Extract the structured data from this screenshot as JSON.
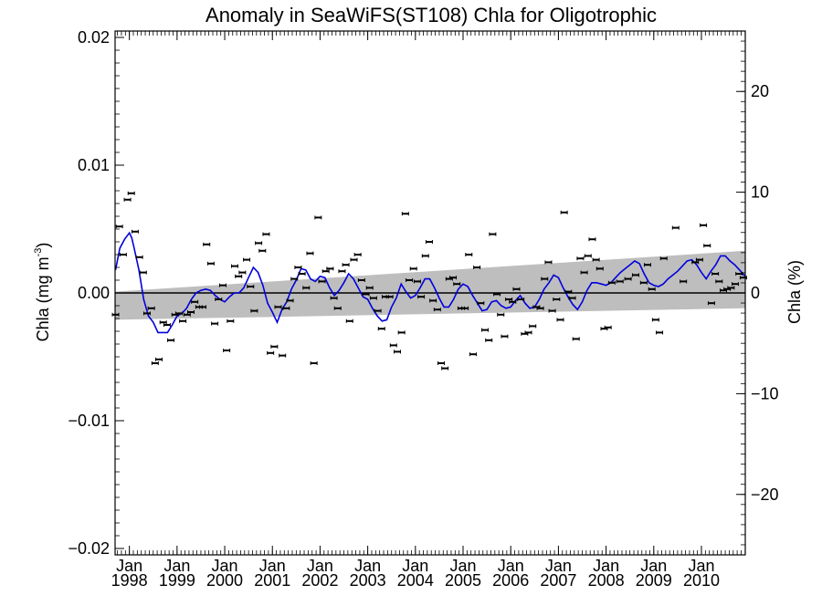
{
  "chart_data": {
    "type": "scatter",
    "title": "Anomaly in SeaWiFS(ST108) Chla for Oligotrophic",
    "ylabel_left": "Chla (mg m",
    "ylabel_left_superscript": "-3",
    "ylabel_left_close": ")",
    "ylabel_right": "Chla (%)",
    "xlim": [
      1997.7,
      2010.92
    ],
    "ylim_left": [
      -0.0205,
      0.0205
    ],
    "ylim_right": [
      -26,
      26
    ],
    "grid": false,
    "zero_line": true,
    "yticks_left": [
      {
        "value": -0.02,
        "label": "−0.02"
      },
      {
        "value": -0.01,
        "label": "−0.01"
      },
      {
        "value": 0.0,
        "label": "0.00"
      },
      {
        "value": 0.01,
        "label": "0.01"
      },
      {
        "value": 0.02,
        "label": "0.02"
      }
    ],
    "yticks_right": [
      {
        "value": -20,
        "label": "−20"
      },
      {
        "value": -10,
        "label": "−10"
      },
      {
        "value": 0,
        "label": "0"
      },
      {
        "value": 10,
        "label": "10"
      },
      {
        "value": 20,
        "label": "20"
      }
    ],
    "xticks": [
      {
        "value": 1998,
        "month": "Jan",
        "year": "1998"
      },
      {
        "value": 1999,
        "month": "Jan",
        "year": "1999"
      },
      {
        "value": 2000,
        "month": "Jan",
        "year": "2000"
      },
      {
        "value": 2001,
        "month": "Jan",
        "year": "2001"
      },
      {
        "value": 2002,
        "month": "Jan",
        "year": "2002"
      },
      {
        "value": 2003,
        "month": "Jan",
        "year": "2003"
      },
      {
        "value": 2004,
        "month": "Jan",
        "year": "2004"
      },
      {
        "value": 2005,
        "month": "Jan",
        "year": "2005"
      },
      {
        "value": 2006,
        "month": "Jan",
        "year": "2006"
      },
      {
        "value": 2007,
        "month": "Jan",
        "year": "2007"
      },
      {
        "value": 2008,
        "month": "Jan",
        "year": "2008"
      },
      {
        "value": 2009,
        "month": "Jan",
        "year": "2009"
      },
      {
        "value": 2010,
        "month": "Jan",
        "year": "2010"
      }
    ],
    "trend_band": {
      "x": [
        1997.7,
        2010.92
      ],
      "upper": [
        0.0001,
        0.0033
      ],
      "lower": [
        -0.0021,
        -0.0012
      ],
      "color": "#bebebe"
    },
    "running_mean": {
      "color": "#0000dd",
      "x": [
        1997.71,
        1997.8,
        1997.9,
        1998.0,
        1998.05,
        1998.1,
        1998.2,
        1998.3,
        1998.4,
        1998.5,
        1998.6,
        1998.7,
        1998.8,
        1998.9,
        1999.0,
        1999.1,
        1999.2,
        1999.3,
        1999.4,
        1999.5,
        1999.6,
        1999.7,
        1999.8,
        1999.9,
        2000.0,
        2000.1,
        2000.2,
        2000.3,
        2000.4,
        2000.5,
        2000.6,
        2000.7,
        2000.8,
        2000.9,
        2001.0,
        2001.1,
        2001.2,
        2001.3,
        2001.4,
        2001.5,
        2001.6,
        2001.7,
        2001.8,
        2001.9,
        2002.0,
        2002.1,
        2002.2,
        2002.3,
        2002.4,
        2002.5,
        2002.6,
        2002.7,
        2002.8,
        2002.9,
        2003.0,
        2003.1,
        2003.2,
        2003.3,
        2003.4,
        2003.5,
        2003.6,
        2003.7,
        2003.8,
        2003.9,
        2004.0,
        2004.1,
        2004.2,
        2004.3,
        2004.4,
        2004.5,
        2004.6,
        2004.7,
        2004.8,
        2004.9,
        2005.0,
        2005.1,
        2005.2,
        2005.3,
        2005.4,
        2005.5,
        2005.6,
        2005.7,
        2005.8,
        2005.9,
        2006.0,
        2006.1,
        2006.2,
        2006.3,
        2006.4,
        2006.5,
        2006.6,
        2006.7,
        2006.8,
        2006.9,
        2007.0,
        2007.1,
        2007.2,
        2007.3,
        2007.4,
        2007.5,
        2007.6,
        2007.7,
        2007.8,
        2007.9,
        2008.0,
        2008.1,
        2008.2,
        2008.3,
        2008.4,
        2008.5,
        2008.6,
        2008.7,
        2008.8,
        2008.9,
        2009.0,
        2009.1,
        2009.2,
        2009.3,
        2009.4,
        2009.5,
        2009.6,
        2009.7,
        2009.8,
        2009.9,
        2010.0,
        2010.1,
        2010.2,
        2010.3,
        2010.4,
        2010.5,
        2010.6,
        2010.7,
        2010.8,
        2010.92
      ],
      "y": [
        0.0018,
        0.0035,
        0.0042,
        0.0047,
        0.0043,
        0.0035,
        0.0018,
        -0.0005,
        -0.0018,
        -0.0023,
        -0.0031,
        -0.0031,
        -0.0031,
        -0.0025,
        -0.0018,
        -0.0016,
        -0.0012,
        -0.0005,
        0.0,
        0.0002,
        0.0003,
        0.0002,
        -0.0002,
        -0.0005,
        -0.0007,
        -0.0003,
        0.0,
        0.0,
        0.0004,
        0.0012,
        0.002,
        0.0016,
        0.0006,
        -0.0008,
        -0.0015,
        -0.0023,
        -0.0013,
        -0.0007,
        0.0003,
        0.001,
        0.0019,
        0.0018,
        0.0011,
        0.0009,
        0.0013,
        0.0012,
        0.0004,
        -0.0002,
        0.0002,
        0.0008,
        0.0015,
        0.0011,
        0.0004,
        -0.0003,
        -0.0005,
        -0.0012,
        -0.0018,
        -0.0022,
        -0.0021,
        -0.0011,
        -0.0004,
        0.0007,
        0.0001,
        -0.0004,
        -0.0002,
        0.0004,
        0.0011,
        0.0011,
        0.0004,
        -0.0004,
        -0.0011,
        -0.0011,
        -0.0005,
        0.0003,
        0.0007,
        0.0005,
        -0.0002,
        -0.0008,
        -0.0014,
        -0.0013,
        -0.0007,
        -0.0006,
        -0.001,
        -0.0012,
        -0.0011,
        -0.0006,
        -0.0002,
        -0.0008,
        -0.0012,
        -0.0011,
        -0.0005,
        0.0003,
        0.0008,
        0.0014,
        0.0012,
        0.0004,
        -0.0003,
        -0.0009,
        -0.0013,
        -0.0007,
        0.0002,
        0.0008,
        0.0008,
        0.0007,
        0.0006,
        0.0008,
        0.0012,
        0.0016,
        0.0019,
        0.0022,
        0.0025,
        0.0023,
        0.0015,
        0.0008,
        0.0006,
        0.0005,
        0.0007,
        0.0011,
        0.0014,
        0.0017,
        0.0021,
        0.0025,
        0.0026,
        0.0022,
        0.0016,
        0.0011,
        0.0017,
        0.0022,
        0.0029,
        0.0029,
        0.0025,
        0.0022,
        0.0018,
        0.0013
      ]
    },
    "monthly_points": {
      "x": [
        1997.71,
        1997.79,
        1997.87,
        1997.96,
        1998.04,
        1998.12,
        1998.21,
        1998.29,
        1998.37,
        1998.46,
        1998.54,
        1998.62,
        1998.71,
        1998.79,
        1998.87,
        1998.96,
        1999.04,
        1999.12,
        1999.21,
        1999.29,
        1999.37,
        1999.46,
        1999.54,
        1999.62,
        1999.71,
        1999.79,
        1999.87,
        1999.96,
        2000.04,
        2000.12,
        2000.21,
        2000.29,
        2000.37,
        2000.46,
        2000.54,
        2000.62,
        2000.71,
        2000.79,
        2000.87,
        2000.96,
        2001.04,
        2001.12,
        2001.21,
        2001.29,
        2001.37,
        2001.46,
        2001.54,
        2001.62,
        2001.71,
        2001.79,
        2001.87,
        2001.96,
        2002.04,
        2002.12,
        2002.21,
        2002.29,
        2002.37,
        2002.46,
        2002.54,
        2002.62,
        2002.71,
        2002.79,
        2002.87,
        2002.96,
        2003.04,
        2003.12,
        2003.21,
        2003.29,
        2003.37,
        2003.46,
        2003.54,
        2003.62,
        2003.71,
        2003.79,
        2003.87,
        2003.96,
        2004.04,
        2004.12,
        2004.21,
        2004.29,
        2004.37,
        2004.46,
        2004.54,
        2004.62,
        2004.71,
        2004.79,
        2004.87,
        2004.96,
        2005.04,
        2005.12,
        2005.21,
        2005.29,
        2005.37,
        2005.46,
        2005.54,
        2005.62,
        2005.71,
        2005.79,
        2005.87,
        2005.96,
        2006.04,
        2006.12,
        2006.21,
        2006.29,
        2006.37,
        2006.46,
        2006.54,
        2006.62,
        2006.71,
        2006.79,
        2006.87,
        2006.96,
        2007.04,
        2007.12,
        2007.21,
        2007.29,
        2007.37,
        2007.46,
        2007.54,
        2007.62,
        2007.71,
        2007.79,
        2007.87,
        2007.96,
        2008.04,
        2008.12,
        2008.29,
        2008.46,
        2008.62,
        2008.79,
        2008.87,
        2008.96,
        2009.04,
        2009.12,
        2009.21,
        2009.46,
        2009.62,
        2009.87,
        2009.96,
        2010.04,
        2010.12,
        2010.21,
        2010.29,
        2010.37,
        2010.46,
        2010.54,
        2010.62,
        2010.71,
        2010.79,
        2010.88
      ],
      "y": [
        -0.0017,
        0.0052,
        0.003,
        0.0073,
        0.0078,
        0.0048,
        0.0028,
        0.0016,
        -0.0016,
        -0.0012,
        -0.0055,
        -0.0052,
        -0.0023,
        -0.0025,
        -0.0037,
        -0.0017,
        -0.0016,
        -0.0022,
        -0.0017,
        -0.0015,
        -0.0007,
        -0.0011,
        -0.0011,
        0.0038,
        0.0023,
        -0.0024,
        -0.0005,
        0.0006,
        -0.0045,
        -0.0022,
        0.0021,
        0.0013,
        0.0016,
        0.0026,
        0.0005,
        -0.0014,
        0.0039,
        0.0033,
        0.0046,
        -0.0047,
        -0.0042,
        -0.0011,
        -0.0049,
        -0.0012,
        -0.0006,
        0.0011,
        0.002,
        0.0015,
        0.0004,
        0.0031,
        -0.0055,
        0.0059,
        0.0009,
        0.0017,
        0.0019,
        -0.0004,
        -0.0012,
        0.0017,
        0.0022,
        -0.0022,
        0.0026,
        0.003,
        0.001,
        -0.0001,
        0.0004,
        -0.0004,
        -0.0014,
        -0.0028,
        -0.0003,
        -0.0003,
        -0.0041,
        -0.0046,
        -0.0031,
        0.0062,
        0.001,
        0.0019,
        0.0009,
        -0.0003,
        0.0029,
        0.004,
        -0.0006,
        -0.0013,
        -0.0055,
        -0.0059,
        0.0011,
        0.0012,
        0.0007,
        -0.0012,
        -0.0012,
        0.003,
        -0.0048,
        0.002,
        -0.0008,
        -0.0029,
        -0.0037,
        0.0046,
        -0.0001,
        -0.0017,
        -0.0034,
        -0.0005,
        -0.0007,
        0.0003,
        -0.0005,
        -0.0032,
        -0.0031,
        -0.0026,
        -0.0011,
        -0.0012,
        0.0011,
        0.0024,
        -0.0014,
        -0.0005,
        -0.0021,
        0.0063,
        0.0001,
        -0.0004,
        -0.0036,
        0.0027,
        0.0016,
        0.0029,
        0.0042,
        0.0026,
        0.0019,
        -0.0028,
        -0.0027,
        0.0008,
        0.0009,
        0.0011,
        0.0014,
        0.0008,
        0.0022,
        0.0003,
        -0.0021,
        -0.0031,
        0.0027,
        0.0051,
        0.0009,
        0.0024,
        0.0026,
        0.0053,
        0.0037,
        -0.0008,
        0.0015,
        0.0009,
        0.0002,
        0.0003,
        0.0004,
        0.0007,
        0.0015,
        0.0012
      ]
    }
  }
}
